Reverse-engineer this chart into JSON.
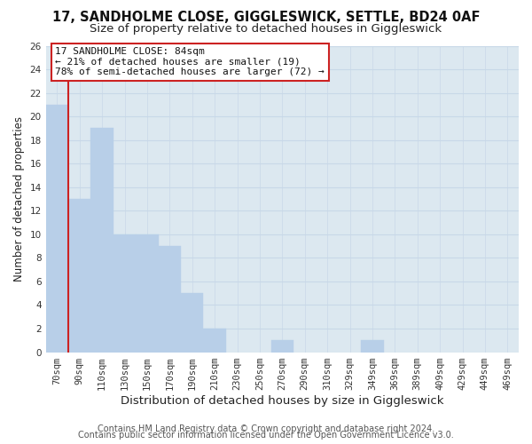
{
  "title": "17, SANDHOLME CLOSE, GIGGLESWICK, SETTLE, BD24 0AF",
  "subtitle": "Size of property relative to detached houses in Giggleswick",
  "xlabel": "Distribution of detached houses by size in Giggleswick",
  "ylabel": "Number of detached properties",
  "bar_labels": [
    "70sqm",
    "90sqm",
    "110sqm",
    "130sqm",
    "150sqm",
    "170sqm",
    "190sqm",
    "210sqm",
    "230sqm",
    "250sqm",
    "270sqm",
    "290sqm",
    "310sqm",
    "329sqm",
    "349sqm",
    "369sqm",
    "389sqm",
    "409sqm",
    "429sqm",
    "449sqm",
    "469sqm"
  ],
  "bar_values": [
    21,
    13,
    19,
    10,
    10,
    9,
    5,
    2,
    0,
    0,
    1,
    0,
    0,
    0,
    1,
    0,
    0,
    0,
    0,
    0,
    0
  ],
  "bar_color": "#b8cfe8",
  "highlight_color": "#cc2222",
  "ylim": [
    0,
    26
  ],
  "yticks": [
    0,
    2,
    4,
    6,
    8,
    10,
    12,
    14,
    16,
    18,
    20,
    22,
    24,
    26
  ],
  "annotation_title": "17 SANDHOLME CLOSE: 84sqm",
  "annotation_line1": "← 21% of detached houses are smaller (19)",
  "annotation_line2": "78% of semi-detached houses are larger (72) →",
  "annotation_box_facecolor": "#ffffff",
  "annotation_box_edgecolor": "#cc2222",
  "grid_color": "#c8d8e8",
  "plot_bg_color": "#dce8f0",
  "fig_bg_color": "#ffffff",
  "footer_line1": "Contains HM Land Registry data © Crown copyright and database right 2024.",
  "footer_line2": "Contains public sector information licensed under the Open Government Licence v3.0.",
  "title_fontsize": 10.5,
  "subtitle_fontsize": 9.5,
  "xlabel_fontsize": 9.5,
  "ylabel_fontsize": 8.5,
  "tick_fontsize": 7.5,
  "annotation_fontsize": 8,
  "footer_fontsize": 7
}
